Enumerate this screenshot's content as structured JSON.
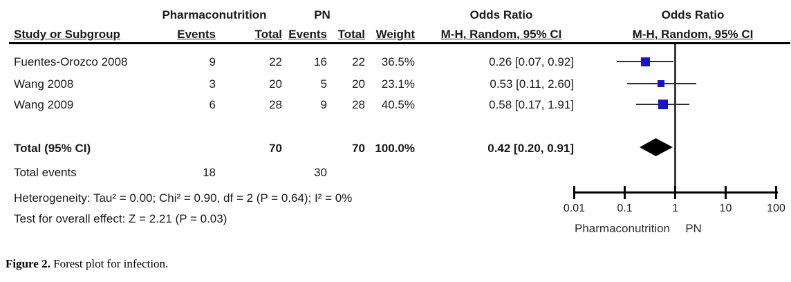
{
  "header": {
    "group1": "Pharmaconutrition",
    "group2": "PN",
    "or_col_title": "Odds Ratio",
    "or_col_sub": "M-H, Random, 95% CI",
    "plot_col_title": "Odds Ratio",
    "plot_col_sub": "M-H, Random, 95% CI",
    "study": "Study or Subgroup",
    "events": "Events",
    "total": "Total",
    "events2": "Events",
    "total2": "Total",
    "weight": "Weight"
  },
  "rows": [
    {
      "study": "Fuentes-Orozco 2008",
      "e1": "9",
      "t1": "22",
      "e2": "16",
      "t2": "22",
      "weight": "36.5%",
      "or": "0.26 [0.07, 0.92]"
    },
    {
      "study": "Wang 2008",
      "e1": "3",
      "t1": "20",
      "e2": "5",
      "t2": "20",
      "weight": "23.1%",
      "or": "0.53 [0.11, 2.60]"
    },
    {
      "study": "Wang 2009",
      "e1": "6",
      "t1": "28",
      "e2": "9",
      "t2": "28",
      "weight": "40.5%",
      "or": "0.58 [0.17, 1.91]"
    }
  ],
  "totals": {
    "label": "Total (95% CI)",
    "t1": "70",
    "t2": "70",
    "weight": "100.0%",
    "or": "0.42 [0.20, 0.91]",
    "events_label": "Total events",
    "e1": "18",
    "e2": "30"
  },
  "stats": {
    "heterogeneity": "Heterogeneity: Tau² = 0.00; Chi² = 0.90, df = 2 (P = 0.64); I² = 0%",
    "overall": "Test for overall effect: Z = 2.21 (P = 0.03)"
  },
  "plot_footer": {
    "left": "Pharmaconutrition",
    "right": "PN"
  },
  "caption": {
    "label": "Figure 2.",
    "text": " Forest plot for infection."
  },
  "colors": {
    "square": "#1414cc",
    "diamond": "#000000",
    "ci_line": "#2e2e2e",
    "axis": "#000000"
  },
  "chart_data": {
    "type": "forest",
    "effect_measure": "Odds Ratio, M-H, Random, 95% CI",
    "x_scale": "log10",
    "axis_ticks": [
      0.01,
      0.1,
      1,
      10,
      100
    ],
    "xlim": [
      0.01,
      100
    ],
    "studies": [
      {
        "name": "Fuentes-Orozco 2008",
        "events_1": 9,
        "total_1": 22,
        "events_2": 16,
        "total_2": 22,
        "weight_pct": 36.5,
        "or": 0.26,
        "ci_low": 0.07,
        "ci_high": 0.92
      },
      {
        "name": "Wang 2008",
        "events_1": 3,
        "total_1": 20,
        "events_2": 5,
        "total_2": 20,
        "weight_pct": 23.1,
        "or": 0.53,
        "ci_low": 0.11,
        "ci_high": 2.6
      },
      {
        "name": "Wang 2009",
        "events_1": 6,
        "total_1": 28,
        "events_2": 9,
        "total_2": 28,
        "weight_pct": 40.5,
        "or": 0.58,
        "ci_low": 0.17,
        "ci_high": 1.91
      }
    ],
    "total": {
      "label": "Total (95% CI)",
      "total_1": 70,
      "total_2": 70,
      "weight_pct": 100.0,
      "or": 0.42,
      "ci_low": 0.2,
      "ci_high": 0.91,
      "total_events_1": 18,
      "total_events_2": 30
    },
    "heterogeneity": {
      "tau2": 0.0,
      "chi2": 0.9,
      "df": 2,
      "p": 0.64,
      "i2_pct": 0
    },
    "overall_effect": {
      "z": 2.21,
      "p": 0.03
    },
    "favours_left": "Pharmaconutrition",
    "favours_right": "PN"
  }
}
